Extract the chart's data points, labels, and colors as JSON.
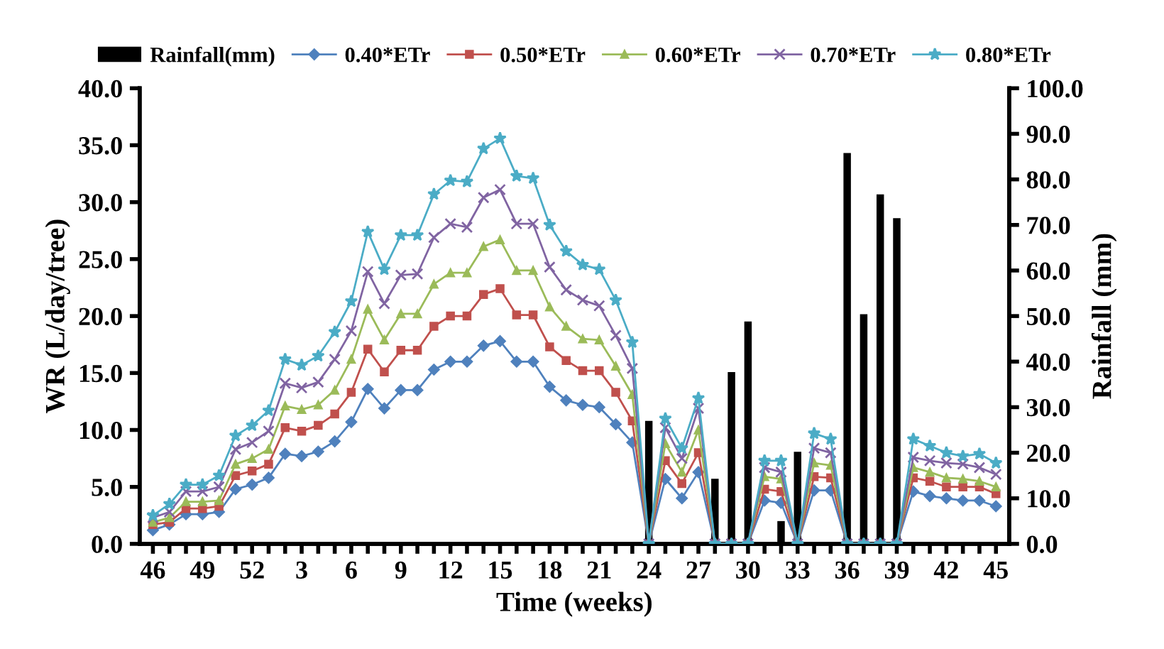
{
  "chart_data": {
    "type": "line",
    "xlabel": "Time (weeks)",
    "ylabel": "WR (L/day/tree)",
    "y2label": "Rainfall (mm)",
    "categories": [
      "46",
      null,
      null,
      "49",
      null,
      null,
      "52",
      null,
      null,
      "3",
      null,
      null,
      "6",
      null,
      null,
      "9",
      null,
      null,
      "12",
      null,
      null,
      "15",
      null,
      null,
      "18",
      null,
      null,
      "21",
      null,
      null,
      "24",
      null,
      null,
      "27",
      null,
      null,
      "30",
      null,
      null,
      "33",
      null,
      null,
      "36",
      null,
      null,
      "39",
      null,
      null,
      "42",
      null,
      null,
      "45"
    ],
    "ylim": [
      0,
      40
    ],
    "yticks": [
      {
        "value": 0,
        "label": "0.0"
      },
      {
        "value": 5,
        "label": "5.0"
      },
      {
        "value": 10,
        "label": "10.0"
      },
      {
        "value": 15,
        "label": "15.0"
      },
      {
        "value": 20,
        "label": "20.0"
      },
      {
        "value": 25,
        "label": "25.0"
      },
      {
        "value": 30,
        "label": "30.0"
      },
      {
        "value": 35,
        "label": "35.0"
      },
      {
        "value": 40,
        "label": "40.0"
      }
    ],
    "y2lim": [
      0,
      100
    ],
    "y2ticks": [
      {
        "value": 0,
        "label": "0.0"
      },
      {
        "value": 10,
        "label": "10.0"
      },
      {
        "value": 20,
        "label": "20.0"
      },
      {
        "value": 30,
        "label": "30.0"
      },
      {
        "value": 40,
        "label": "40.0"
      },
      {
        "value": 50,
        "label": "50.0"
      },
      {
        "value": 60,
        "label": "60.0"
      },
      {
        "value": 70,
        "label": "70.0"
      },
      {
        "value": 80,
        "label": "80.0"
      },
      {
        "value": 90,
        "label": "90.0"
      },
      {
        "value": 100,
        "label": "100.0"
      }
    ],
    "grid": false,
    "legend": "top",
    "series": [
      {
        "name": "Rainfall(mm)",
        "type": "bar",
        "axis": "y2",
        "color": "#000000",
        "values": [
          null,
          null,
          null,
          null,
          null,
          null,
          null,
          null,
          null,
          null,
          null,
          null,
          null,
          null,
          null,
          null,
          null,
          null,
          null,
          null,
          null,
          null,
          null,
          null,
          null,
          null,
          null,
          null,
          null,
          null,
          27.0,
          null,
          null,
          null,
          14.3,
          37.7,
          48.8,
          null,
          5.0,
          20.2,
          null,
          null,
          85.8,
          50.4,
          76.7,
          71.5,
          null,
          null,
          null,
          null,
          null,
          null
        ]
      },
      {
        "name": "0.40*ETr",
        "color": "#4f81bd",
        "marker": "diamond",
        "values": [
          1.2,
          1.7,
          2.6,
          2.6,
          2.8,
          4.8,
          5.2,
          5.8,
          7.9,
          7.7,
          8.1,
          9.0,
          10.7,
          13.6,
          11.9,
          13.5,
          13.5,
          15.3,
          16.0,
          16.0,
          17.4,
          17.8,
          16.0,
          16.0,
          13.8,
          12.6,
          12.2,
          12.0,
          10.5,
          8.9,
          0,
          5.7,
          4.0,
          6.3,
          0,
          0,
          0,
          3.8,
          3.6,
          0,
          4.7,
          4.7,
          0,
          0,
          0,
          0,
          4.6,
          4.2,
          4.0,
          3.8,
          3.8,
          3.3
        ]
      },
      {
        "name": "0.50*ETr",
        "color": "#c0504d",
        "marker": "square",
        "values": [
          1.7,
          1.9,
          3.1,
          3.1,
          3.3,
          6.0,
          6.4,
          7.0,
          10.2,
          9.9,
          10.4,
          11.4,
          13.3,
          17.1,
          15.1,
          17.0,
          17.0,
          19.1,
          20.0,
          20.0,
          21.9,
          22.4,
          20.1,
          20.1,
          17.3,
          16.1,
          15.2,
          15.2,
          13.3,
          10.8,
          0,
          7.3,
          5.3,
          8.0,
          0,
          0,
          0,
          4.8,
          4.6,
          0,
          5.9,
          5.8,
          0,
          0,
          0,
          0,
          5.8,
          5.5,
          5.0,
          5.0,
          5.0,
          4.4
        ]
      },
      {
        "name": "0.60*ETr",
        "color": "#9bbb59",
        "marker": "triangle",
        "values": [
          1.9,
          2.3,
          3.7,
          3.7,
          3.8,
          7.0,
          7.5,
          8.3,
          12.1,
          11.8,
          12.2,
          13.5,
          16.2,
          20.6,
          17.9,
          20.2,
          20.2,
          22.8,
          23.8,
          23.8,
          26.1,
          26.7,
          24.0,
          24.0,
          20.8,
          19.1,
          18.0,
          17.9,
          15.6,
          13.1,
          0,
          8.8,
          6.3,
          10.0,
          0,
          0,
          0,
          5.9,
          5.7,
          0,
          7.1,
          6.9,
          0,
          0,
          0,
          0,
          6.7,
          6.3,
          5.8,
          5.7,
          5.5,
          5.0
        ]
      },
      {
        "name": "0.70*ETr",
        "color": "#8064a2",
        "marker": "cross",
        "values": [
          2.3,
          2.8,
          4.6,
          4.6,
          5.0,
          8.3,
          8.9,
          9.9,
          14.1,
          13.7,
          14.2,
          16.2,
          18.7,
          23.9,
          21.1,
          23.6,
          23.7,
          26.9,
          28.1,
          27.8,
          30.4,
          31.1,
          28.1,
          28.1,
          24.3,
          22.3,
          21.4,
          20.9,
          18.3,
          15.4,
          0,
          10.2,
          7.5,
          11.9,
          0,
          0,
          0,
          6.7,
          6.3,
          0,
          8.4,
          8.0,
          0,
          0,
          0,
          0,
          7.6,
          7.3,
          7.1,
          7.0,
          6.7,
          6.1
        ]
      },
      {
        "name": "0.80*ETr",
        "color": "#4bacc6",
        "marker": "star",
        "values": [
          2.5,
          3.5,
          5.2,
          5.2,
          6.0,
          9.5,
          10.4,
          11.7,
          16.2,
          15.7,
          16.5,
          18.6,
          21.3,
          27.4,
          24.1,
          27.1,
          27.1,
          30.7,
          31.9,
          31.8,
          34.7,
          35.6,
          32.3,
          32.1,
          28.0,
          25.7,
          24.5,
          24.1,
          21.4,
          17.7,
          0,
          11.0,
          8.4,
          12.8,
          0,
          0,
          0,
          7.3,
          7.3,
          0,
          9.7,
          9.2,
          0,
          0,
          0,
          0,
          9.2,
          8.6,
          8.0,
          7.7,
          7.9,
          7.1
        ]
      }
    ]
  }
}
